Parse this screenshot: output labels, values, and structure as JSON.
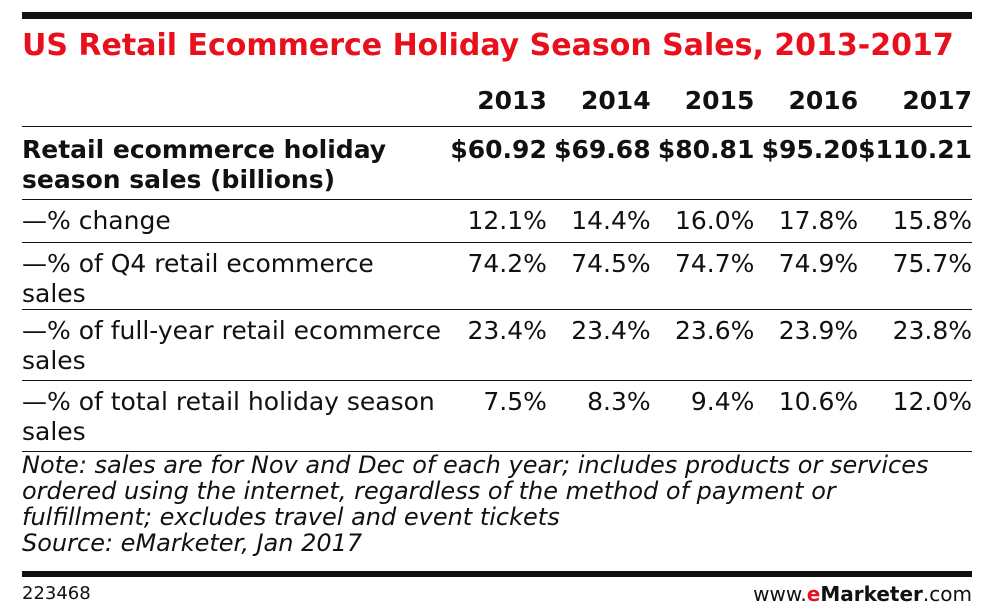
{
  "chart_data": {
    "type": "table",
    "title": "US Retail Ecommerce Holiday Season Sales, 2013-2017",
    "columns": [
      "2013",
      "2014",
      "2015",
      "2016",
      "2017"
    ],
    "rows": [
      {
        "label": "Retail ecommerce holiday season sales (billions)",
        "values": [
          "$60.92",
          "$69.68",
          "$80.81",
          "$95.20",
          "$110.21"
        ]
      },
      {
        "label": "—% change",
        "values": [
          "12.1%",
          "14.4%",
          "16.0%",
          "17.8%",
          "15.8%"
        ]
      },
      {
        "label": "—% of Q4 retail ecommerce sales",
        "values": [
          "74.2%",
          "74.5%",
          "74.7%",
          "74.9%",
          "75.7%"
        ]
      },
      {
        "label": "—% of full-year retail ecommerce sales",
        "values": [
          "23.4%",
          "23.4%",
          "23.6%",
          "23.9%",
          "23.8%"
        ]
      },
      {
        "label": "—% of total retail holiday season sales",
        "values": [
          "7.5%",
          "8.3%",
          "9.4%",
          "10.6%",
          "12.0%"
        ]
      }
    ],
    "note": "Note: sales are for Nov and Dec of each year; includes products or services ordered using the internet, regardless of the method of payment or fulfillment; excludes travel and event tickets",
    "source": "Source: eMarketer, Jan 2017"
  },
  "footer": {
    "chart_id": "223468",
    "brand_prefix": "www.",
    "brand_e": "e",
    "brand_name": "Marketer",
    "brand_suffix": ".com"
  },
  "colors": {
    "accent": "#e8101c",
    "text": "#111111"
  }
}
